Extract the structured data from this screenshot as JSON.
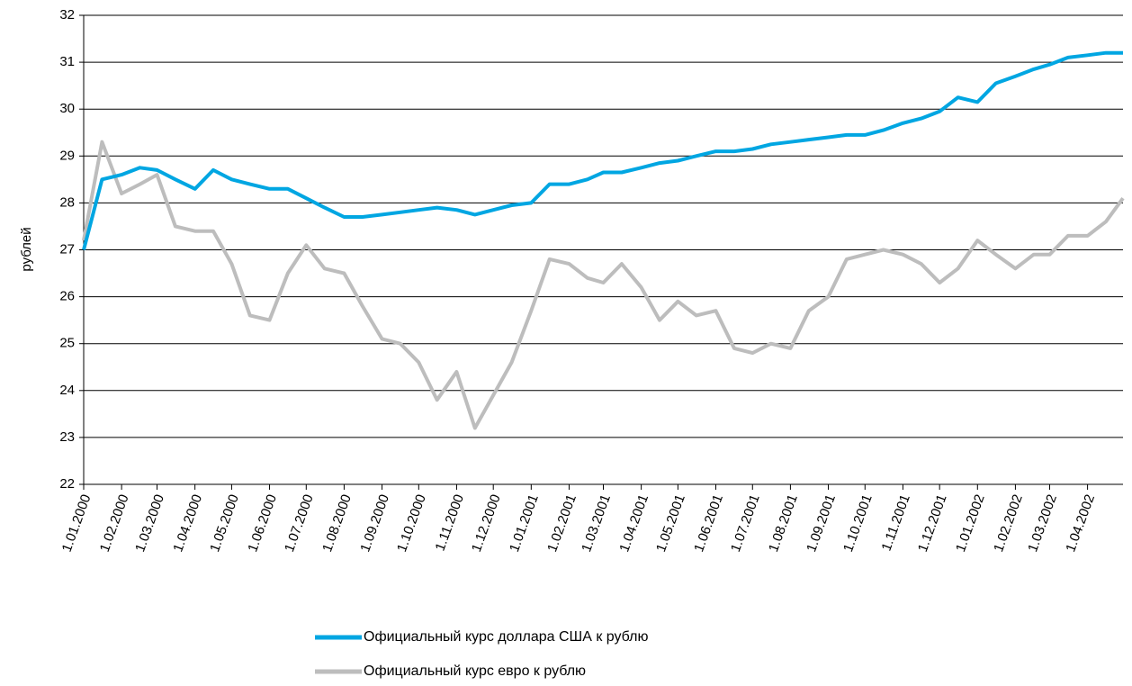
{
  "chart_data": {
    "type": "line",
    "ylabel": "рублей",
    "x": [
      "2000-01-01",
      "2000-01-16",
      "2000-02-01",
      "2000-02-16",
      "2000-03-01",
      "2000-03-16",
      "2000-04-01",
      "2000-04-16",
      "2000-05-01",
      "2000-05-16",
      "2000-06-01",
      "2000-06-16",
      "2000-07-01",
      "2000-07-16",
      "2000-08-01",
      "2000-08-16",
      "2000-09-01",
      "2000-09-16",
      "2000-10-01",
      "2000-10-16",
      "2000-11-01",
      "2000-11-16",
      "2000-12-01",
      "2000-12-16",
      "2001-01-01",
      "2001-01-16",
      "2001-02-01",
      "2001-02-16",
      "2001-03-01",
      "2001-03-16",
      "2001-04-01",
      "2001-04-16",
      "2001-05-01",
      "2001-05-16",
      "2001-06-01",
      "2001-06-16",
      "2001-07-01",
      "2001-07-16",
      "2001-08-01",
      "2001-08-16",
      "2001-09-01",
      "2001-09-16",
      "2001-10-01",
      "2001-10-16",
      "2001-11-01",
      "2001-11-16",
      "2001-12-01",
      "2001-12-16",
      "2002-01-01",
      "2002-01-16",
      "2002-02-01",
      "2002-02-16",
      "2002-03-01",
      "2002-03-16",
      "2002-04-01",
      "2002-04-16",
      "2002-04-30"
    ],
    "series": [
      {
        "name": "Официальный курс доллара США к рублю",
        "color": "#00a6e2",
        "values": [
          27.0,
          28.5,
          28.6,
          28.75,
          28.7,
          28.5,
          28.3,
          28.7,
          28.5,
          28.4,
          28.3,
          28.3,
          28.1,
          27.9,
          27.7,
          27.7,
          27.75,
          27.8,
          27.85,
          27.9,
          27.85,
          27.75,
          27.85,
          27.95,
          28.0,
          28.4,
          28.4,
          28.5,
          28.65,
          28.65,
          28.75,
          28.85,
          28.9,
          29.0,
          29.1,
          29.1,
          29.15,
          29.25,
          29.3,
          29.35,
          29.4,
          29.45,
          29.45,
          29.55,
          29.7,
          29.8,
          29.95,
          30.25,
          30.15,
          30.55,
          30.7,
          30.85,
          30.95,
          31.1,
          31.15,
          31.2,
          31.2
        ]
      },
      {
        "name": "Официальный курс евро к рублю",
        "color": "#bdbdbd",
        "values": [
          27.2,
          29.3,
          28.2,
          28.4,
          28.6,
          27.5,
          27.4,
          27.4,
          26.7,
          25.6,
          25.5,
          26.5,
          27.1,
          26.6,
          26.5,
          25.8,
          25.1,
          25.0,
          24.6,
          23.8,
          24.4,
          23.2,
          23.9,
          24.6,
          25.7,
          26.8,
          26.7,
          26.4,
          26.3,
          26.7,
          26.2,
          25.5,
          25.9,
          25.6,
          25.7,
          24.9,
          24.8,
          25.0,
          24.9,
          25.7,
          26.0,
          26.8,
          26.9,
          27.0,
          26.9,
          26.7,
          26.3,
          26.6,
          27.2,
          26.9,
          26.6,
          26.9,
          26.9,
          27.3,
          27.3,
          27.6,
          28.1
        ]
      }
    ],
    "xlim": [
      "2000-01-01",
      "2002-04-30"
    ],
    "xticks": [
      {
        "value": "2000-01-01",
        "label": "1.01.2000"
      },
      {
        "value": "2000-02-01",
        "label": "1.02.2000"
      },
      {
        "value": "2000-03-01",
        "label": "1.03.2000"
      },
      {
        "value": "2000-04-01",
        "label": "1.04.2000"
      },
      {
        "value": "2000-05-01",
        "label": "1.05.2000"
      },
      {
        "value": "2000-06-01",
        "label": "1.06.2000"
      },
      {
        "value": "2000-07-01",
        "label": "1.07.2000"
      },
      {
        "value": "2000-08-01",
        "label": "1.08.2000"
      },
      {
        "value": "2000-09-01",
        "label": "1.09.2000"
      },
      {
        "value": "2000-10-01",
        "label": "1.10.2000"
      },
      {
        "value": "2000-11-01",
        "label": "1.11.2000"
      },
      {
        "value": "2000-12-01",
        "label": "1.12.2000"
      },
      {
        "value": "2001-01-01",
        "label": "1.01.2001"
      },
      {
        "value": "2001-02-01",
        "label": "1.02.2001"
      },
      {
        "value": "2001-03-01",
        "label": "1.03.2001"
      },
      {
        "value": "2001-04-01",
        "label": "1.04.2001"
      },
      {
        "value": "2001-05-01",
        "label": "1.05.2001"
      },
      {
        "value": "2001-06-01",
        "label": "1.06.2001"
      },
      {
        "value": "2001-07-01",
        "label": "1.07.2001"
      },
      {
        "value": "2001-08-01",
        "label": "1.08.2001"
      },
      {
        "value": "2001-09-01",
        "label": "1.09.2001"
      },
      {
        "value": "2001-10-01",
        "label": "1.10.2001"
      },
      {
        "value": "2001-11-01",
        "label": "1.11.2001"
      },
      {
        "value": "2001-12-01",
        "label": "1.12.2001"
      },
      {
        "value": "2002-01-01",
        "label": "1.01.2002"
      },
      {
        "value": "2002-02-01",
        "label": "1.02.2002"
      },
      {
        "value": "2002-03-01",
        "label": "1.03.2002"
      },
      {
        "value": "2002-04-01",
        "label": "1.04.2002"
      }
    ],
    "ylim": [
      22,
      32
    ],
    "yticks": [
      22,
      23,
      24,
      25,
      26,
      27,
      28,
      29,
      30,
      31,
      32
    ],
    "grid": true,
    "legend": "bottom"
  }
}
